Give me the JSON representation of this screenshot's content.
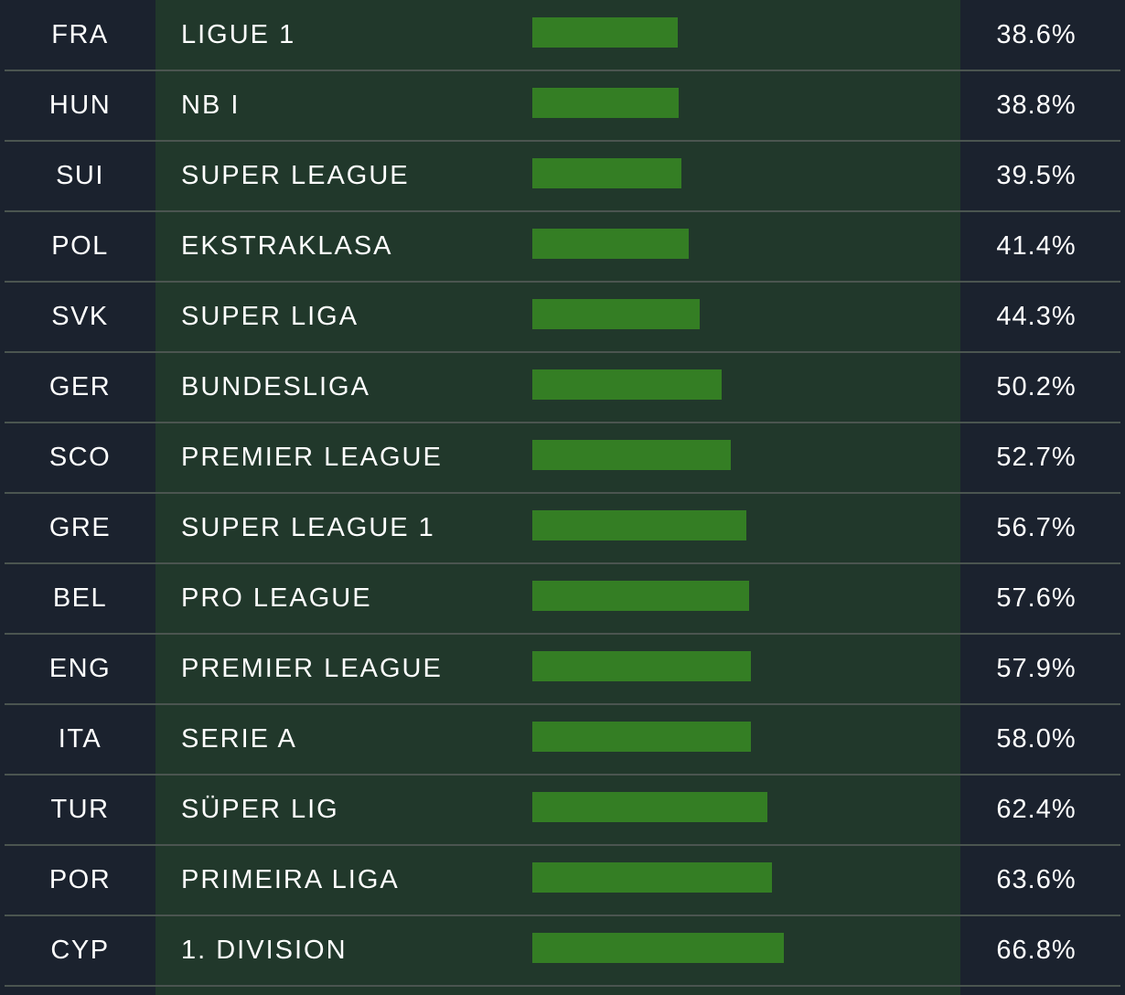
{
  "chart_data": {
    "type": "bar",
    "orientation": "horizontal",
    "rows": [
      {
        "code": "FRA",
        "league": "LIGUE 1",
        "value": 38.6,
        "label": "38.6%"
      },
      {
        "code": "HUN",
        "league": "NB I",
        "value": 38.8,
        "label": "38.8%"
      },
      {
        "code": "SUI",
        "league": "SUPER LEAGUE",
        "value": 39.5,
        "label": "39.5%"
      },
      {
        "code": "POL",
        "league": "EKSTRAKLASA",
        "value": 41.4,
        "label": "41.4%"
      },
      {
        "code": "SVK",
        "league": "SUPER LIGA",
        "value": 44.3,
        "label": "44.3%"
      },
      {
        "code": "GER",
        "league": "BUNDESLIGA",
        "value": 50.2,
        "label": "50.2%"
      },
      {
        "code": "SCO",
        "league": "PREMIER LEAGUE",
        "value": 52.7,
        "label": "52.7%"
      },
      {
        "code": "GRE",
        "league": "SUPER LEAGUE 1",
        "value": 56.7,
        "label": "56.7%"
      },
      {
        "code": "BEL",
        "league": "PRO LEAGUE",
        "value": 57.6,
        "label": "57.6%"
      },
      {
        "code": "ENG",
        "league": "PREMIER LEAGUE",
        "value": 57.9,
        "label": "57.9%"
      },
      {
        "code": "ITA",
        "league": "SERIE A",
        "value": 58.0,
        "label": "58.0%"
      },
      {
        "code": "TUR",
        "league": "SÜPER LIG",
        "value": 62.4,
        "label": "62.4%"
      },
      {
        "code": "POR",
        "league": "PRIMEIRA LIGA",
        "value": 63.6,
        "label": "63.6%"
      },
      {
        "code": "CYP",
        "league": "1. DIVISION",
        "value": 66.8,
        "label": "66.8%"
      }
    ],
    "colors": {
      "background": "#1b222e",
      "league_column": "#21382b",
      "bar": "#347e24",
      "divider": "#4b5550",
      "text": "#ffffff"
    }
  }
}
